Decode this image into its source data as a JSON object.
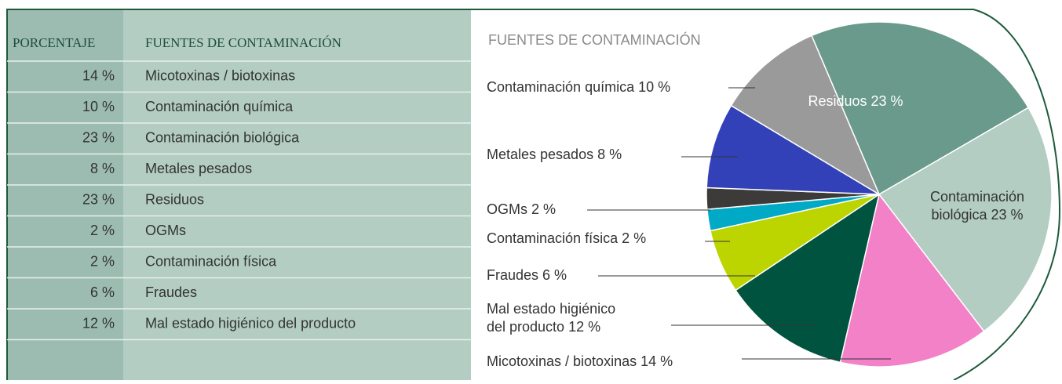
{
  "table": {
    "header": [
      "PORCENTAJE",
      "FUENTES DE CONTAMINACIÓN"
    ],
    "rows": [
      [
        "14 %",
        "Micotoxinas / biotoxinas"
      ],
      [
        "10 %",
        "Contaminación química"
      ],
      [
        "23 %",
        "Contaminación biológica"
      ],
      [
        "8 %",
        "Metales pesados"
      ],
      [
        "23 %",
        "Residuos"
      ],
      [
        "2 %",
        "OGMs"
      ],
      [
        "2 %",
        "Contaminación física"
      ],
      [
        "6 %",
        "Fraudes"
      ],
      [
        "12 %",
        "Mal estado higiénico del producto"
      ]
    ]
  },
  "chart_data": {
    "type": "pie",
    "title": "FUENTES DE CONTAMINACIÓN",
    "labels": [
      [
        "Residuos 23 %"
      ],
      [
        "Contaminación",
        "biológica 23 %"
      ],
      [
        "Micotoxinas / biotoxinas 14 %"
      ],
      [
        "Mal estado higiénico",
        "del producto 12 %"
      ],
      [
        "Fraudes 6 %"
      ],
      [
        "Contaminación física 2 %"
      ],
      [
        "OGMs 2 %"
      ],
      [
        "Metales pesados 8 %"
      ],
      [
        "Contaminación química 10 %"
      ]
    ],
    "values": [
      23,
      23,
      14,
      12,
      6,
      2,
      2,
      8,
      10
    ],
    "colors": [
      "#6a9a8b",
      "#b3cdc2",
      "#f281c8",
      "#00543f",
      "#bcd400",
      "#00a9c5",
      "#3d3a3a",
      "#3341b8",
      "#9a9a9a"
    ]
  }
}
